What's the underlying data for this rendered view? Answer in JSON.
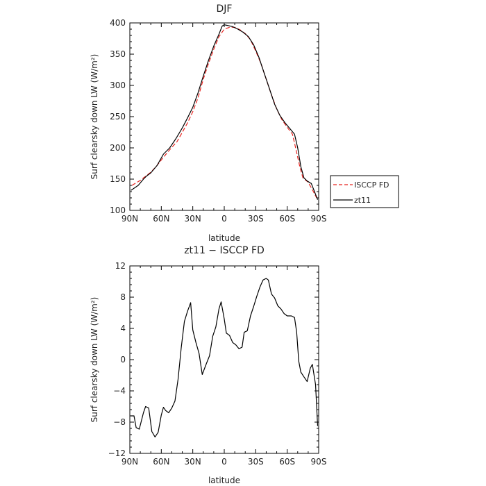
{
  "chart_data": [
    {
      "type": "line",
      "title": "DJF",
      "xlabel": "latitude",
      "ylabel": "Surf clearsky down LW (W/m²)",
      "x_ticks": [
        {
          "value": -90,
          "label": "90N"
        },
        {
          "value": -60,
          "label": "60N"
        },
        {
          "value": -30,
          "label": "30N"
        },
        {
          "value": 0,
          "label": "0"
        },
        {
          "value": 30,
          "label": "30S"
        },
        {
          "value": 60,
          "label": "60S"
        },
        {
          "value": 90,
          "label": "90S"
        }
      ],
      "xlim": [
        -90,
        90
      ],
      "ylim": [
        100,
        400
      ],
      "y_ticks": [
        100,
        150,
        200,
        250,
        300,
        350,
        400
      ],
      "legend_position": "outside-right",
      "series": [
        {
          "name": "ISCCP FD",
          "color": "#e8231f",
          "dash": "dashed",
          "points": [
            [
              -88,
              140
            ],
            [
              -80,
              148
            ],
            [
              -70,
              161
            ],
            [
              -65,
              170
            ],
            [
              -58,
              185
            ],
            [
              -52,
              197
            ],
            [
              -45,
              210
            ],
            [
              -40,
              225
            ],
            [
              -35,
              240
            ],
            [
              -30,
              258
            ],
            [
              -25,
              280
            ],
            [
              -20,
              310
            ],
            [
              -15,
              335
            ],
            [
              -10,
              358
            ],
            [
              -5,
              378
            ],
            [
              0,
              390
            ],
            [
              5,
              393
            ],
            [
              10,
              393
            ],
            [
              15,
              389
            ],
            [
              20,
              383
            ],
            [
              25,
              373
            ],
            [
              30,
              355
            ],
            [
              35,
              335
            ],
            [
              40,
              310
            ],
            [
              45,
              285
            ],
            [
              50,
              262
            ],
            [
              55,
              245
            ],
            [
              60,
              233
            ],
            [
              65,
              222
            ],
            [
              68,
              200
            ],
            [
              72,
              170
            ],
            [
              75,
              152
            ],
            [
              80,
              145
            ],
            [
              85,
              130
            ],
            [
              88,
              120
            ]
          ]
        },
        {
          "name": "zt11",
          "color": "#000000",
          "dash": "solid",
          "points": [
            [
              -89,
              132
            ],
            [
              -82,
              140
            ],
            [
              -77,
              150
            ],
            [
              -74,
              155
            ],
            [
              -70,
              160
            ],
            [
              -64,
              172
            ],
            [
              -58,
              190
            ],
            [
              -52,
              200
            ],
            [
              -46,
              215
            ],
            [
              -40,
              232
            ],
            [
              -35,
              248
            ],
            [
              -30,
              265
            ],
            [
              -25,
              288
            ],
            [
              -20,
              315
            ],
            [
              -15,
              340
            ],
            [
              -10,
              363
            ],
            [
              -5,
              382
            ],
            [
              -2,
              395
            ],
            [
              0,
              397
            ],
            [
              3,
              396
            ],
            [
              8,
              394
            ],
            [
              13,
              390
            ],
            [
              18,
              385
            ],
            [
              23,
              378
            ],
            [
              28,
              365
            ],
            [
              33,
              345
            ],
            [
              38,
              320
            ],
            [
              43,
              295
            ],
            [
              48,
              270
            ],
            [
              53,
              252
            ],
            [
              58,
              240
            ],
            [
              63,
              230
            ],
            [
              67,
              222
            ],
            [
              70,
              200
            ],
            [
              73,
              170
            ],
            [
              76,
              152
            ],
            [
              79,
              147
            ],
            [
              83,
              143
            ],
            [
              86,
              130
            ],
            [
              89,
              117
            ]
          ]
        }
      ]
    },
    {
      "type": "line",
      "title": "zt11 − ISCCP FD",
      "xlabel": "latitude",
      "ylabel": "Surf clearsky down LW (W/m²)",
      "x_ticks": [
        {
          "value": -90,
          "label": "90N"
        },
        {
          "value": -60,
          "label": "60N"
        },
        {
          "value": -30,
          "label": "30N"
        },
        {
          "value": 0,
          "label": "0"
        },
        {
          "value": 30,
          "label": "30S"
        },
        {
          "value": 60,
          "label": "60S"
        },
        {
          "value": 90,
          "label": "90S"
        }
      ],
      "xlim": [
        -90,
        90
      ],
      "ylim": [
        -12,
        12
      ],
      "y_ticks": [
        -12,
        -8,
        -4,
        0,
        4,
        8,
        12
      ],
      "series": [
        {
          "name": "",
          "color": "#000000",
          "dash": "solid",
          "points": [
            [
              -89,
              -7.2
            ],
            [
              -86,
              -7.2
            ],
            [
              -84,
              -8.7
            ],
            [
              -81,
              -8.9
            ],
            [
              -77,
              -6.8
            ],
            [
              -75,
              -6
            ],
            [
              -72,
              -6.2
            ],
            [
              -69,
              -9.2
            ],
            [
              -66,
              -9.9
            ],
            [
              -63,
              -9.3
            ],
            [
              -60,
              -7.1
            ],
            [
              -58,
              -6.1
            ],
            [
              -56,
              -6.5
            ],
            [
              -53,
              -6.8
            ],
            [
              -50,
              -6.2
            ],
            [
              -47,
              -5.3
            ],
            [
              -44,
              -2.5
            ],
            [
              -41,
              1.5
            ],
            [
              -38,
              4.9
            ],
            [
              -35,
              6.2
            ],
            [
              -32,
              7.3
            ],
            [
              -30,
              3.8
            ],
            [
              -27,
              2.2
            ],
            [
              -24,
              0.8
            ],
            [
              -21,
              -1.9
            ],
            [
              -17,
              -0.5
            ],
            [
              -14,
              0.5
            ],
            [
              -11,
              3
            ],
            [
              -8,
              4.2
            ],
            [
              -5,
              6.5
            ],
            [
              -3,
              7.4
            ],
            [
              0,
              5.2
            ],
            [
              2,
              3.4
            ],
            [
              5,
              3.1
            ],
            [
              8,
              2.2
            ],
            [
              11,
              1.9
            ],
            [
              14,
              1.4
            ],
            [
              17,
              1.6
            ],
            [
              19,
              3.5
            ],
            [
              22,
              3.7
            ],
            [
              25,
              5.6
            ],
            [
              28,
              6.8
            ],
            [
              31,
              8.1
            ],
            [
              34,
              9.3
            ],
            [
              37,
              10.2
            ],
            [
              40,
              10.4
            ],
            [
              42,
              10.2
            ],
            [
              45,
              8.4
            ],
            [
              48,
              7.9
            ],
            [
              51,
              6.9
            ],
            [
              54,
              6.5
            ],
            [
              57,
              5.9
            ],
            [
              60,
              5.6
            ],
            [
              64,
              5.6
            ],
            [
              67,
              5.4
            ],
            [
              69,
              3.5
            ],
            [
              71,
              -0.2
            ],
            [
              73,
              -1.6
            ],
            [
              76,
              -2.2
            ],
            [
              79,
              -2.8
            ],
            [
              82,
              -1.1
            ],
            [
              84,
              -0.6
            ],
            [
              87,
              -3.2
            ],
            [
              89,
              -8.5
            ]
          ]
        }
      ]
    }
  ]
}
